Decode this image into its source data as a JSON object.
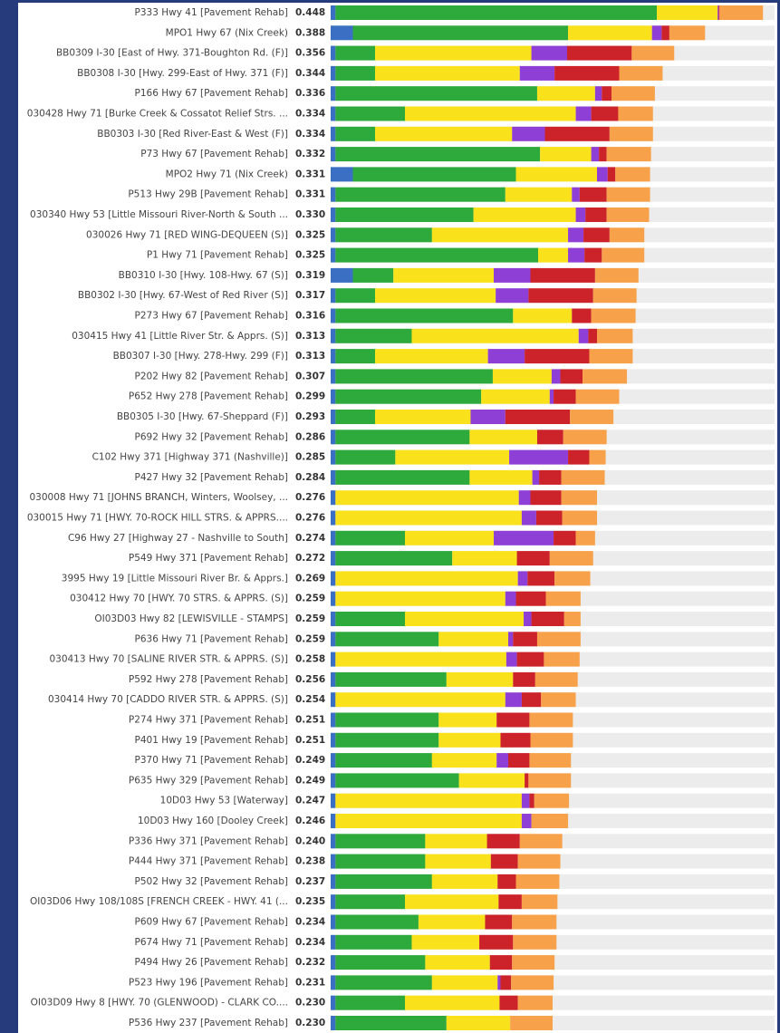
{
  "chart_data": {
    "type": "stacked-bar-horizontal",
    "categories": [
      "P333 Hwy 41 [Pavement Rehab]",
      "MPO1 Hwy 67 (Nix Creek)",
      "BB0309 I-30 [East of Hwy. 371-Boughton Rd. (F)]",
      "BB0308 I-30 [Hwy. 299-East of Hwy. 371 (F)]",
      "P166 Hwy 67 [Pavement Rehab]",
      "030428 Hwy 71 [Burke Creek & Cossatot Relief Strs. ...",
      "BB0303 I-30 [Red River-East & West (F)]",
      "P73 Hwy 67 [Pavement Rehab]",
      "MPO2 Hwy 71 (Nix Creek)",
      "P513 Hwy 29B [Pavement Rehab]",
      "030340 Hwy 53 [Little Missouri River-North & South ...",
      "030026 Hwy 71 [RED WING-DEQUEEN (S)]",
      "P1 Hwy 71 [Pavement Rehab]",
      "BB0310 I-30 [Hwy. 108-Hwy. 67 (S)]",
      "BB0302 I-30 [Hwy. 67-West of Red River (S)]",
      "P273 Hwy 67 [Pavement Rehab]",
      "030415 Hwy 41 [Little River Str. & Apprs. (S)]",
      "BB0307 I-30 [Hwy. 278-Hwy. 299 (F)]",
      "P202 Hwy 82 [Pavement Rehab]",
      "P652 Hwy 278 [Pavement Rehab]",
      "BB0305 I-30 [Hwy. 67-Sheppard (F)]",
      "P692 Hwy 32 [Pavement Rehab]",
      "C102 Hwy 371 [Highway 371 (Nashville)]",
      "P427 Hwy 32 [Pavement Rehab]",
      "030008 Hwy 71 [JOHNS BRANCH, Winters, Woolsey, ...",
      "030015 Hwy 71 [HWY. 70-ROCK HILL STRS. & APPRS....",
      "C96 Hwy 27 [Highway 27 - Nashville to South]",
      "P549 Hwy 371 [Pavement Rehab]",
      "3995 Hwy 19 [Little Missouri River Br. & Apprs.]",
      "030412 Hwy 70 [HWY. 70 STRS. & APPRS. (S)]",
      "OI03D03 Hwy 82 [LEWISVILLE - STAMPS]",
      "P636 Hwy 71 [Pavement Rehab]",
      "030413 Hwy 70 [SALINE RIVER STR. & APPRS. (S)]",
      "P592 Hwy 278 [Pavement Rehab]",
      "030414 Hwy 70 [CADDO RIVER STR. & APPRS. (S)]",
      "P274 Hwy 371 [Pavement Rehab]",
      "P401 Hwy 19 [Pavement Rehab]",
      "P370 Hwy 71 [Pavement Rehab]",
      "P635 Hwy 329 [Pavement Rehab]",
      "10D03 Hwy 53 [Waterway]",
      "10D03 Hwy 160 [Dooley Creek]",
      "P336 Hwy 371 [Pavement Rehab]",
      "P444 Hwy 371 [Pavement Rehab]",
      "P502 Hwy 32 [Pavement Rehab]",
      "OI03D06 Hwy 108/108S [FRENCH CREEK - HWY. 41 (...",
      "P609 Hwy 67 [Pavement Rehab]",
      "P674 Hwy 71 [Pavement Rehab]",
      "P494 Hwy 26 [Pavement Rehab]",
      "P523 Hwy 196 [Pavement Rehab]",
      "OI03D09 Hwy 8 [HWY. 70 (GLENWOOD) - CLARK CO....",
      "P536 Hwy 237 [Pavement Rehab]"
    ],
    "total_labels": [
      "0.448",
      "0.388",
      "0.356",
      "0.344",
      "0.336",
      "0.334",
      "0.334",
      "0.332",
      "0.331",
      "0.331",
      "0.330",
      "0.325",
      "0.325",
      "0.319",
      "0.317",
      "0.316",
      "0.313",
      "0.313",
      "0.307",
      "0.299",
      "0.293",
      "0.286",
      "0.285",
      "0.284",
      "0.276",
      "0.276",
      "0.274",
      "0.272",
      "0.269",
      "0.259",
      "0.259",
      "0.259",
      "0.258",
      "0.256",
      "0.254",
      "0.251",
      "0.251",
      "0.249",
      "0.249",
      "0.247",
      "0.246",
      "0.240",
      "0.238",
      "0.237",
      "0.235",
      "0.234",
      "0.234",
      "0.232",
      "0.231",
      "0.230",
      "0.230"
    ],
    "xlim": [
      0,
      0.46
    ],
    "series": [
      {
        "color": "#3a6fc4",
        "values": [
          0.005,
          0.023,
          0.005,
          0.005,
          0.005,
          0.005,
          0.005,
          0.005,
          0.023,
          0.005,
          0.005,
          0.005,
          0.005,
          0.023,
          0.005,
          0.005,
          0.005,
          0.005,
          0.005,
          0.005,
          0.005,
          0.005,
          0.005,
          0.005,
          0.005,
          0.005,
          0.005,
          0.005,
          0.005,
          0.005,
          0.005,
          0.005,
          0.005,
          0.005,
          0.005,
          0.005,
          0.005,
          0.005,
          0.005,
          0.005,
          0.005,
          0.005,
          0.005,
          0.005,
          0.005,
          0.005,
          0.005,
          0.005,
          0.005,
          0.005,
          0.005
        ]
      },
      {
        "color": "#2eaa3c",
        "values": [
          0.333,
          0.223,
          0.041,
          0.041,
          0.209,
          0.072,
          0.041,
          0.212,
          0.169,
          0.176,
          0.143,
          0.1,
          0.21,
          0.042,
          0.041,
          0.184,
          0.079,
          0.041,
          0.163,
          0.151,
          0.041,
          0.139,
          0.062,
          0.139,
          0,
          0,
          0.072,
          0.121,
          0,
          0,
          0.072,
          0.107,
          0,
          0.115,
          0,
          0.107,
          0.107,
          0.1,
          0.128,
          0,
          0,
          0.093,
          0.093,
          0.1,
          0.072,
          0.086,
          0.079,
          0.093,
          0.1,
          0.072,
          0.115
        ]
      },
      {
        "color": "#f9e21b",
        "values": [
          0.063,
          0.087,
          0.162,
          0.15,
          0.06,
          0.177,
          0.142,
          0.053,
          0.084,
          0.069,
          0.106,
          0.141,
          0.031,
          0.104,
          0.125,
          0.061,
          0.173,
          0.117,
          0.061,
          0.071,
          0.099,
          0.07,
          0.118,
          0.065,
          0.19,
          0.193,
          0.092,
          0.067,
          0.189,
          0.176,
          0.123,
          0.072,
          0.177,
          0.069,
          0.176,
          0.06,
          0.064,
          0.067,
          0.068,
          0.193,
          0.193,
          0.064,
          0.068,
          0.068,
          0.097,
          0.069,
          0.07,
          0.067,
          0.068,
          0.098,
          0.066
        ]
      },
      {
        "color": "#8e3fd6",
        "values": [
          0.001,
          0.01,
          0.037,
          0.036,
          0.007,
          0.016,
          0.034,
          0.008,
          0.011,
          0.008,
          0.01,
          0.016,
          0.017,
          0.038,
          0.034,
          0,
          0.01,
          0.038,
          0.009,
          0.004,
          0.036,
          0,
          0.061,
          0.007,
          0.012,
          0.015,
          0.062,
          0,
          0.01,
          0.011,
          0.008,
          0.005,
          0.011,
          0,
          0.017,
          0,
          0,
          0.012,
          0,
          0.008,
          0.01,
          0,
          0,
          0,
          0,
          0,
          0,
          0,
          0.003,
          0,
          0
        ]
      },
      {
        "color": "#cc2229",
        "values": [
          0.001,
          0.008,
          0.067,
          0.067,
          0.01,
          0.028,
          0.067,
          0.008,
          0.008,
          0.028,
          0.022,
          0.027,
          0.018,
          0.067,
          0.067,
          0.02,
          0.009,
          0.067,
          0.023,
          0.023,
          0.067,
          0.027,
          0.022,
          0.023,
          0.032,
          0.027,
          0.023,
          0.034,
          0.028,
          0.031,
          0.034,
          0.025,
          0.028,
          0.023,
          0.02,
          0.034,
          0.031,
          0.022,
          0.004,
          0.005,
          0,
          0.034,
          0.028,
          0.019,
          0.024,
          0.028,
          0.035,
          0.023,
          0.011,
          0.019,
          0
        ]
      },
      {
        "color": "#f7a24a",
        "values": [
          0.045,
          0.037,
          0.044,
          0.045,
          0.045,
          0.036,
          0.045,
          0.046,
          0.036,
          0.045,
          0.044,
          0.036,
          0.044,
          0.045,
          0.045,
          0.046,
          0.037,
          0.045,
          0.046,
          0.045,
          0.045,
          0.045,
          0.017,
          0.045,
          0.037,
          0.036,
          0.02,
          0.045,
          0.037,
          0.036,
          0.017,
          0.045,
          0.037,
          0.044,
          0.036,
          0.045,
          0.044,
          0.043,
          0.044,
          0.036,
          0.038,
          0.044,
          0.044,
          0.045,
          0.037,
          0.046,
          0.045,
          0.044,
          0.044,
          0.036,
          0.044
        ]
      }
    ]
  }
}
